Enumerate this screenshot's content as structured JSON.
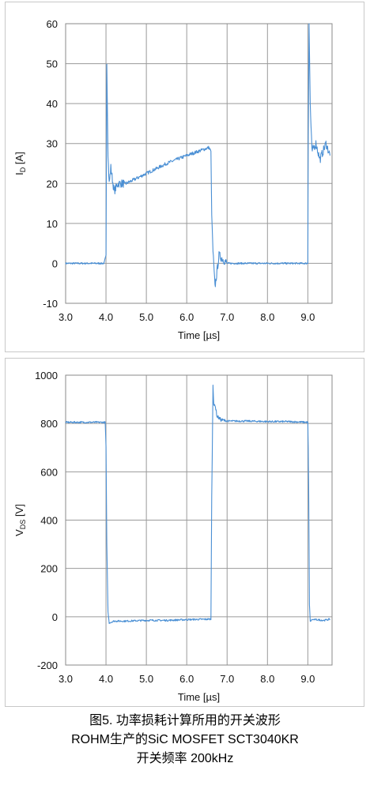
{
  "chart_data": [
    {
      "type": "line",
      "ylabel_main": "I",
      "ylabel_sub": "D",
      "ylabel_unit": " [A]",
      "xlabel": "Time [µs]",
      "xlim": [
        3.0,
        9.6
      ],
      "ylim": [
        -10,
        60
      ],
      "xticks": [
        3.0,
        4.0,
        5.0,
        6.0,
        7.0,
        8.0,
        9.0
      ],
      "xtick_labels": [
        "3.0",
        "4.0",
        "5.0",
        "6.0",
        "7.0",
        "8.0",
        "9.0"
      ],
      "yticks": [
        -10,
        0,
        10,
        20,
        30,
        40,
        50,
        60
      ],
      "ytick_labels": [
        "-10",
        "0",
        "10",
        "20",
        "30",
        "40",
        "50",
        "60"
      ],
      "grid": true,
      "color": "#4a8fd4",
      "series": [
        {
          "x": [
            3.0,
            3.95,
            4.0,
            4.02,
            4.05,
            4.08,
            4.12,
            4.2,
            4.3,
            4.5,
            5.0,
            5.5,
            6.0,
            6.55,
            6.6,
            6.62,
            6.65,
            6.7,
            6.8,
            7.0,
            7.5,
            8.0,
            8.5,
            9.0,
            9.01,
            9.03,
            9.06,
            9.1,
            9.2,
            9.3,
            9.45,
            9.55
          ],
          "y": [
            0,
            0,
            2,
            50,
            27,
            20,
            24,
            18,
            20,
            20,
            22.5,
            25,
            27,
            29,
            28,
            12,
            3,
            -6,
            2,
            0,
            0,
            0,
            0,
            0,
            30,
            60,
            40,
            28,
            30,
            26,
            30,
            27
          ]
        }
      ]
    },
    {
      "type": "line",
      "ylabel_main": "V",
      "ylabel_sub": "DS",
      "ylabel_unit": " [V]",
      "xlabel": "Time [µs]",
      "xlim": [
        3.0,
        9.6
      ],
      "ylim": [
        -200,
        1000
      ],
      "xticks": [
        3.0,
        4.0,
        5.0,
        6.0,
        7.0,
        8.0,
        9.0
      ],
      "xtick_labels": [
        "3.0",
        "4.0",
        "5.0",
        "6.0",
        "7.0",
        "8.0",
        "9.0"
      ],
      "yticks": [
        -200,
        0,
        200,
        400,
        600,
        800,
        1000
      ],
      "ytick_labels": [
        "-200",
        "0",
        "200",
        "400",
        "600",
        "800",
        "1000"
      ],
      "grid": true,
      "color": "#4a8fd4",
      "series": [
        {
          "x": [
            3.0,
            3.98,
            4.0,
            4.02,
            4.05,
            4.08,
            4.2,
            4.5,
            5.0,
            5.5,
            6.0,
            6.6,
            6.62,
            6.65,
            6.67,
            6.7,
            6.75,
            6.85,
            7.0,
            7.5,
            8.0,
            8.5,
            9.0,
            9.01,
            9.02,
            9.04,
            9.06,
            9.1,
            9.2,
            9.4,
            9.55
          ],
          "y": [
            805,
            805,
            700,
            300,
            20,
            -25,
            -18,
            -18,
            -15,
            -15,
            -12,
            -10,
            500,
            960,
            870,
            880,
            830,
            815,
            810,
            810,
            808,
            808,
            805,
            700,
            550,
            50,
            -20,
            -12,
            -12,
            -15,
            -10
          ]
        }
      ]
    }
  ],
  "caption": {
    "line1": "图5. 功率损耗计算所用的开关波形",
    "line2": "ROHM生产的SiC MOSFET SCT3040KR",
    "line3": "开关频率 200kHz"
  }
}
